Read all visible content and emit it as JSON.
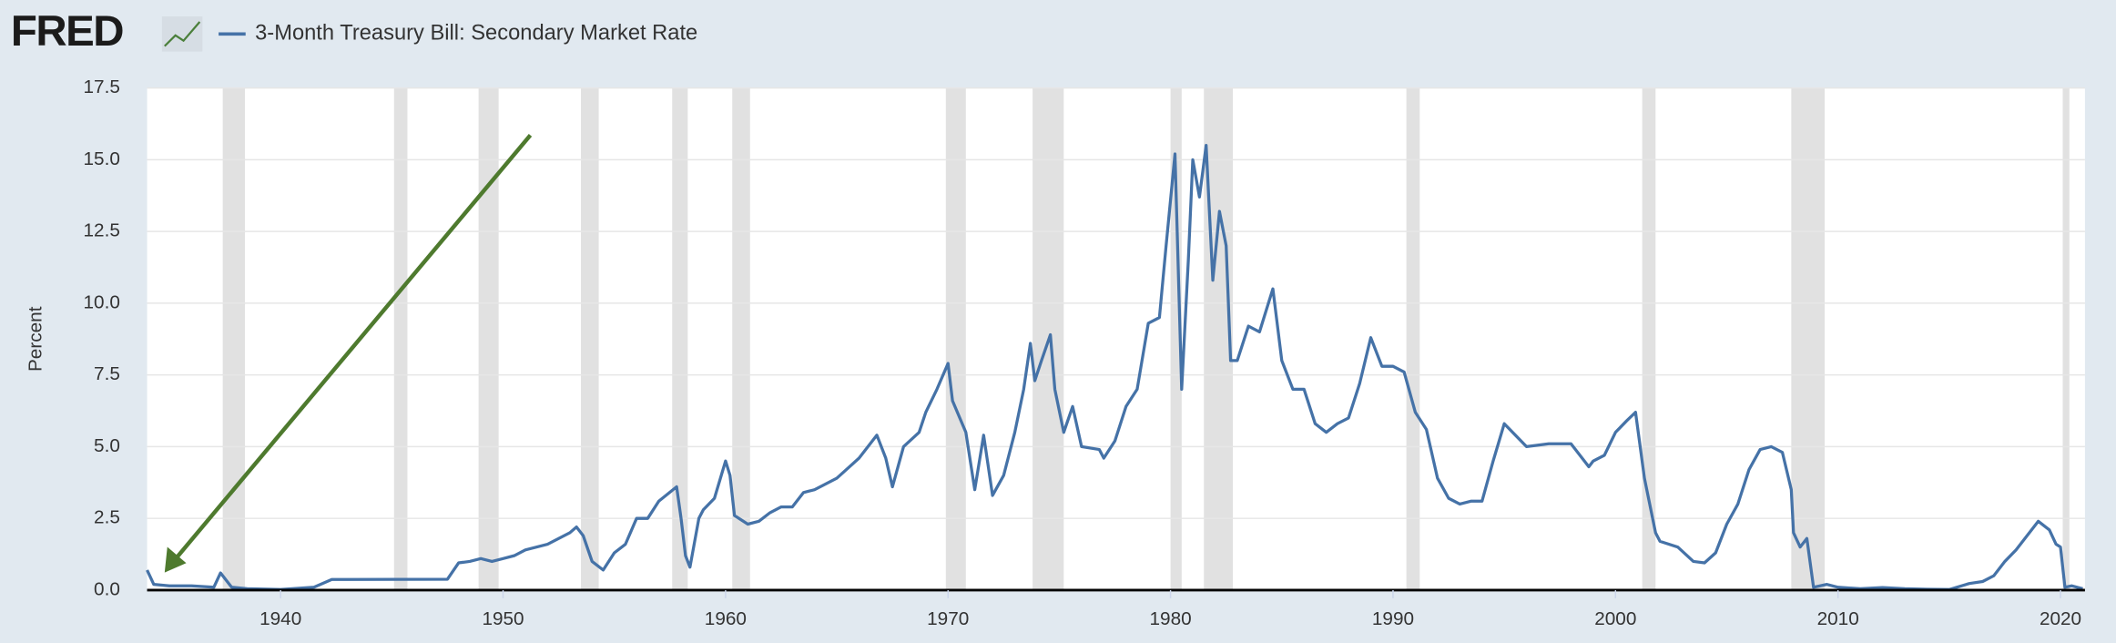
{
  "brand": "FRED",
  "chart_data": {
    "type": "line",
    "y_label": "Percent",
    "series": [
      {
        "name": "3-Month Treasury Bill: Secondary Market Rate",
        "color": "#4572a7",
        "x": [
          1934.0,
          1934.3,
          1935,
          1936,
          1937,
          1937.3,
          1937.8,
          1938.5,
          1940,
          1941.5,
          1942.3,
          1947.5,
          1948,
          1948.5,
          1949,
          1949.5,
          1950,
          1950.5,
          1951,
          1952,
          1953,
          1953.3,
          1953.6,
          1954,
          1954.5,
          1955,
          1955.5,
          1956,
          1956.5,
          1957,
          1957.8,
          1958,
          1958.2,
          1958.4,
          1958.8,
          1959,
          1959.5,
          1960,
          1960.2,
          1960.4,
          1961,
          1961.5,
          1962,
          1962.5,
          1963,
          1963.5,
          1964,
          1965,
          1966,
          1966.8,
          1967.2,
          1967.5,
          1968,
          1968.7,
          1969,
          1969.5,
          1970,
          1970.2,
          1970.8,
          1971.2,
          1971.6,
          1972,
          1972.5,
          1973,
          1973.4,
          1973.7,
          1973.9,
          1974.2,
          1974.6,
          1974.8,
          1975.2,
          1975.6,
          1976,
          1976.8,
          1977,
          1977.5,
          1978,
          1978.5,
          1979,
          1979.5,
          1979.8,
          1980.2,
          1980.5,
          1980.8,
          1981,
          1981.3,
          1981.6,
          1981.9,
          1982.2,
          1982.5,
          1982.7,
          1983,
          1983.5,
          1984,
          1984.6,
          1985,
          1985.5,
          1986,
          1986.5,
          1987,
          1987.5,
          1988,
          1988.5,
          1989,
          1989.5,
          1990,
          1990.5,
          1991,
          1991.5,
          1992,
          1992.5,
          1993,
          1993.5,
          1994,
          1994.5,
          1995,
          1995.5,
          1996,
          1997,
          1998,
          1998.8,
          1999,
          1999.5,
          2000,
          2000.5,
          2000.9,
          2001.3,
          2001.8,
          2002,
          2002.8,
          2003.5,
          2004,
          2004.5,
          2005,
          2005.5,
          2006,
          2006.5,
          2007,
          2007.5,
          2007.9,
          2008,
          2008.3,
          2008.6,
          2008.9,
          2009.5,
          2010,
          2011,
          2012,
          2013,
          2014,
          2015,
          2015.9,
          2016.5,
          2017,
          2017.5,
          2018,
          2018.5,
          2019,
          2019.5,
          2019.8,
          2020,
          2020.2,
          2020.5,
          2021
        ],
        "values": [
          0.7,
          0.2,
          0.15,
          0.15,
          0.1,
          0.6,
          0.1,
          0.05,
          0.02,
          0.1,
          0.37,
          0.38,
          0.95,
          1.0,
          1.1,
          1.0,
          1.1,
          1.2,
          1.4,
          1.6,
          2.0,
          2.2,
          1.9,
          1.0,
          0.7,
          1.3,
          1.6,
          2.5,
          2.5,
          3.1,
          3.6,
          2.5,
          1.2,
          0.8,
          2.5,
          2.8,
          3.2,
          4.5,
          4.0,
          2.6,
          2.3,
          2.4,
          2.7,
          2.9,
          2.9,
          3.4,
          3.5,
          3.9,
          4.6,
          5.4,
          4.6,
          3.6,
          5.0,
          5.5,
          6.2,
          7.0,
          7.9,
          6.6,
          5.5,
          3.5,
          5.4,
          3.3,
          4.0,
          5.5,
          7.0,
          8.6,
          7.3,
          8.0,
          8.9,
          7.0,
          5.5,
          6.4,
          5.0,
          4.9,
          4.6,
          5.2,
          6.4,
          7.0,
          9.3,
          9.5,
          12.0,
          15.2,
          7.0,
          11.5,
          15.0,
          13.7,
          15.5,
          10.8,
          13.2,
          12.0,
          8.0,
          8.0,
          9.2,
          9.0,
          10.5,
          8.0,
          7.0,
          7.0,
          5.8,
          5.5,
          5.8,
          6.0,
          7.2,
          8.8,
          7.8,
          7.8,
          7.6,
          6.2,
          5.6,
          3.9,
          3.2,
          3.0,
          3.1,
          3.1,
          4.5,
          5.8,
          5.4,
          5.0,
          5.1,
          5.1,
          4.3,
          4.5,
          4.7,
          5.5,
          5.9,
          6.2,
          3.9,
          2.0,
          1.7,
          1.5,
          1.0,
          0.95,
          1.3,
          2.3,
          3.0,
          4.2,
          4.9,
          5.0,
          4.8,
          3.5,
          2.0,
          1.5,
          1.8,
          0.1,
          0.2,
          0.1,
          0.05,
          0.09,
          0.05,
          0.03,
          0.02,
          0.23,
          0.3,
          0.5,
          1.0,
          1.4,
          1.9,
          2.4,
          2.1,
          1.6,
          1.5,
          0.1,
          0.15,
          0.05
        ]
      }
    ],
    "recessions": [
      [
        1937.4,
        1938.4
      ],
      [
        1945.1,
        1945.7
      ],
      [
        1948.9,
        1949.8
      ],
      [
        1953.5,
        1954.3
      ],
      [
        1957.6,
        1958.3
      ],
      [
        1960.3,
        1961.1
      ],
      [
        1969.9,
        1970.8
      ],
      [
        1973.8,
        1975.2
      ],
      [
        1980.0,
        1980.5
      ],
      [
        1981.5,
        1982.8
      ],
      [
        1990.6,
        1991.2
      ],
      [
        2001.2,
        2001.8
      ],
      [
        2007.9,
        2009.4
      ],
      [
        2020.1,
        2020.4
      ]
    ],
    "recession_color": "#e1e1e1",
    "xlim": [
      1934,
      2021.1
    ],
    "ylim": [
      0,
      17.5
    ],
    "xticks": [
      1940,
      1950,
      1960,
      1970,
      1980,
      1990,
      2000,
      2010,
      2020
    ],
    "yticks": [
      {
        "value": 0,
        "label": "0.0"
      },
      {
        "value": 2.5,
        "label": "2.5"
      },
      {
        "value": 5,
        "label": "5.0"
      },
      {
        "value": 7.5,
        "label": "7.5"
      },
      {
        "value": 10,
        "label": "10.0"
      },
      {
        "value": 12.5,
        "label": "12.5"
      },
      {
        "value": 15,
        "label": "15.0"
      },
      {
        "value": 17.5,
        "label": "17.5"
      }
    ],
    "grid": true
  }
}
